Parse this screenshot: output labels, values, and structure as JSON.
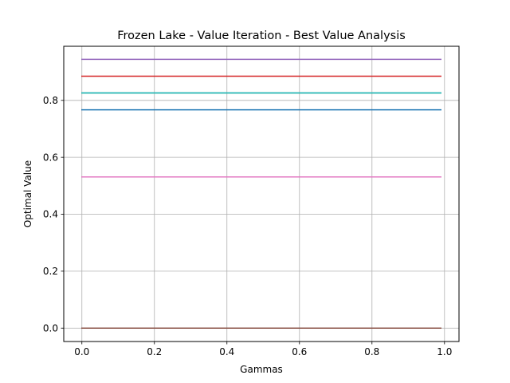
{
  "chart_data": {
    "type": "line",
    "title": "Frozen Lake - Value Iteration - Best Value Analysis",
    "xlabel": "Gammas",
    "ylabel": "Optimal Value",
    "xlim": [
      -0.05,
      1.04
    ],
    "ylim": [
      -0.047,
      0.99
    ],
    "xticks": [
      0.0,
      0.2,
      0.4,
      0.6,
      0.8,
      1.0
    ],
    "xtick_labels": [
      "0.0",
      "0.2",
      "0.4",
      "0.6",
      "0.8",
      "1.0"
    ],
    "yticks": [
      0.0,
      0.2,
      0.4,
      0.6,
      0.8
    ],
    "ytick_labels": [
      "0.0",
      "0.2",
      "0.4",
      "0.6",
      "0.8"
    ],
    "grid": true,
    "x": [
      0.0,
      0.99
    ],
    "series": [
      {
        "values": [
          0.0,
          0.0
        ],
        "color": "#1f77b4"
      },
      {
        "values": [
          0.0,
          0.0
        ],
        "color": "#ff7f0e"
      },
      {
        "values": [
          0.0,
          0.0
        ],
        "color": "#2ca02c"
      },
      {
        "values": [
          0.885,
          0.885
        ],
        "color": "#d62728"
      },
      {
        "values": [
          0.944,
          0.944
        ],
        "color": "#9467bd"
      },
      {
        "values": [
          0.0,
          0.0
        ],
        "color": "#8c564b"
      },
      {
        "values": [
          0.531,
          0.531
        ],
        "color": "#e377c2"
      },
      {
        "values": [
          0.826,
          0.826
        ],
        "color": "#7f7f7f"
      },
      {
        "values": [
          0.826,
          0.826
        ],
        "color": "#bcbd22"
      },
      {
        "values": [
          0.826,
          0.826
        ],
        "color": "#17becf"
      },
      {
        "values": [
          0.767,
          0.767
        ],
        "color": "#1f77b4"
      }
    ]
  }
}
